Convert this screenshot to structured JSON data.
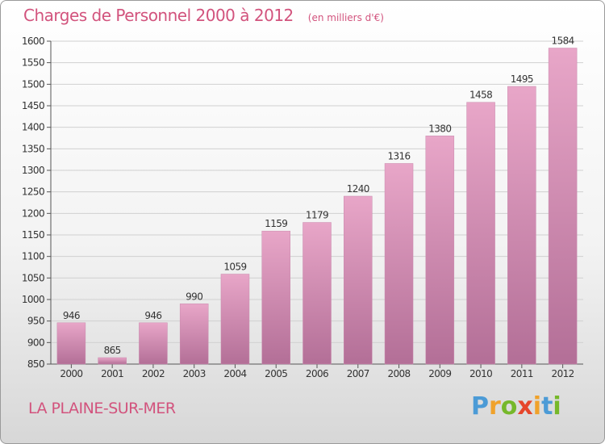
{
  "chart_data": {
    "type": "bar",
    "title": "Charges de Personnel 2000 à 2012",
    "subtitle": "(en milliers d'€)",
    "categories": [
      "2000",
      "2001",
      "2002",
      "2003",
      "2004",
      "2005",
      "2006",
      "2007",
      "2008",
      "2009",
      "2010",
      "2011",
      "2012"
    ],
    "values": [
      946,
      865,
      946,
      990,
      1059,
      1159,
      1179,
      1240,
      1316,
      1380,
      1458,
      1495,
      1584
    ],
    "ylim": [
      850,
      1600
    ],
    "yticks": [
      850,
      900,
      950,
      1000,
      1050,
      1100,
      1150,
      1200,
      1250,
      1300,
      1350,
      1400,
      1450,
      1500,
      1550,
      1600
    ],
    "xlabel": "",
    "ylabel": "",
    "grid": true,
    "colors": {
      "bar_light": "#e8a6c8",
      "bar_dark": "#b36f97",
      "axis": "#555555",
      "grid": "#d0d0d0",
      "text": "#333333",
      "title": "#d2537d"
    }
  },
  "location": "LA PLAINE-SUR-MER",
  "brand": {
    "letters": [
      "P",
      "r",
      "o",
      "x",
      "i",
      "t",
      "i"
    ],
    "colors": [
      "#4c9bd6",
      "#f0a22b",
      "#76b82a",
      "#e6462b",
      "#f0a22b",
      "#4c9bd6",
      "#76b82a"
    ]
  }
}
